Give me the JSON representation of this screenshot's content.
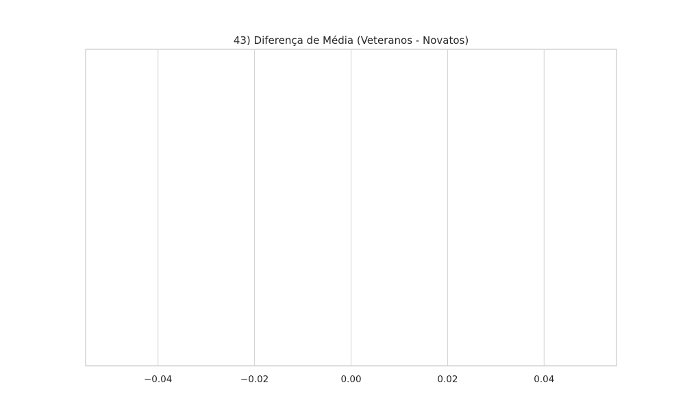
{
  "chart_data": {
    "type": "bar",
    "title": "43) Diferença de Média (Veteranos - Novatos)",
    "xlabel": "",
    "ylabel": "",
    "categories": [],
    "values": [],
    "xlim": [
      -0.055,
      0.055
    ],
    "xticks": [
      -0.04,
      -0.02,
      0.0,
      0.02,
      0.04
    ],
    "xtick_labels": [
      "−0.04",
      "−0.02",
      "0.00",
      "0.02",
      "0.04"
    ],
    "grid": "vertical",
    "orientation": "horizontal",
    "colors": {
      "background": "#ffffff",
      "grid": "#d5d5d5",
      "frame": "#cccccc",
      "text": "#262626"
    }
  }
}
